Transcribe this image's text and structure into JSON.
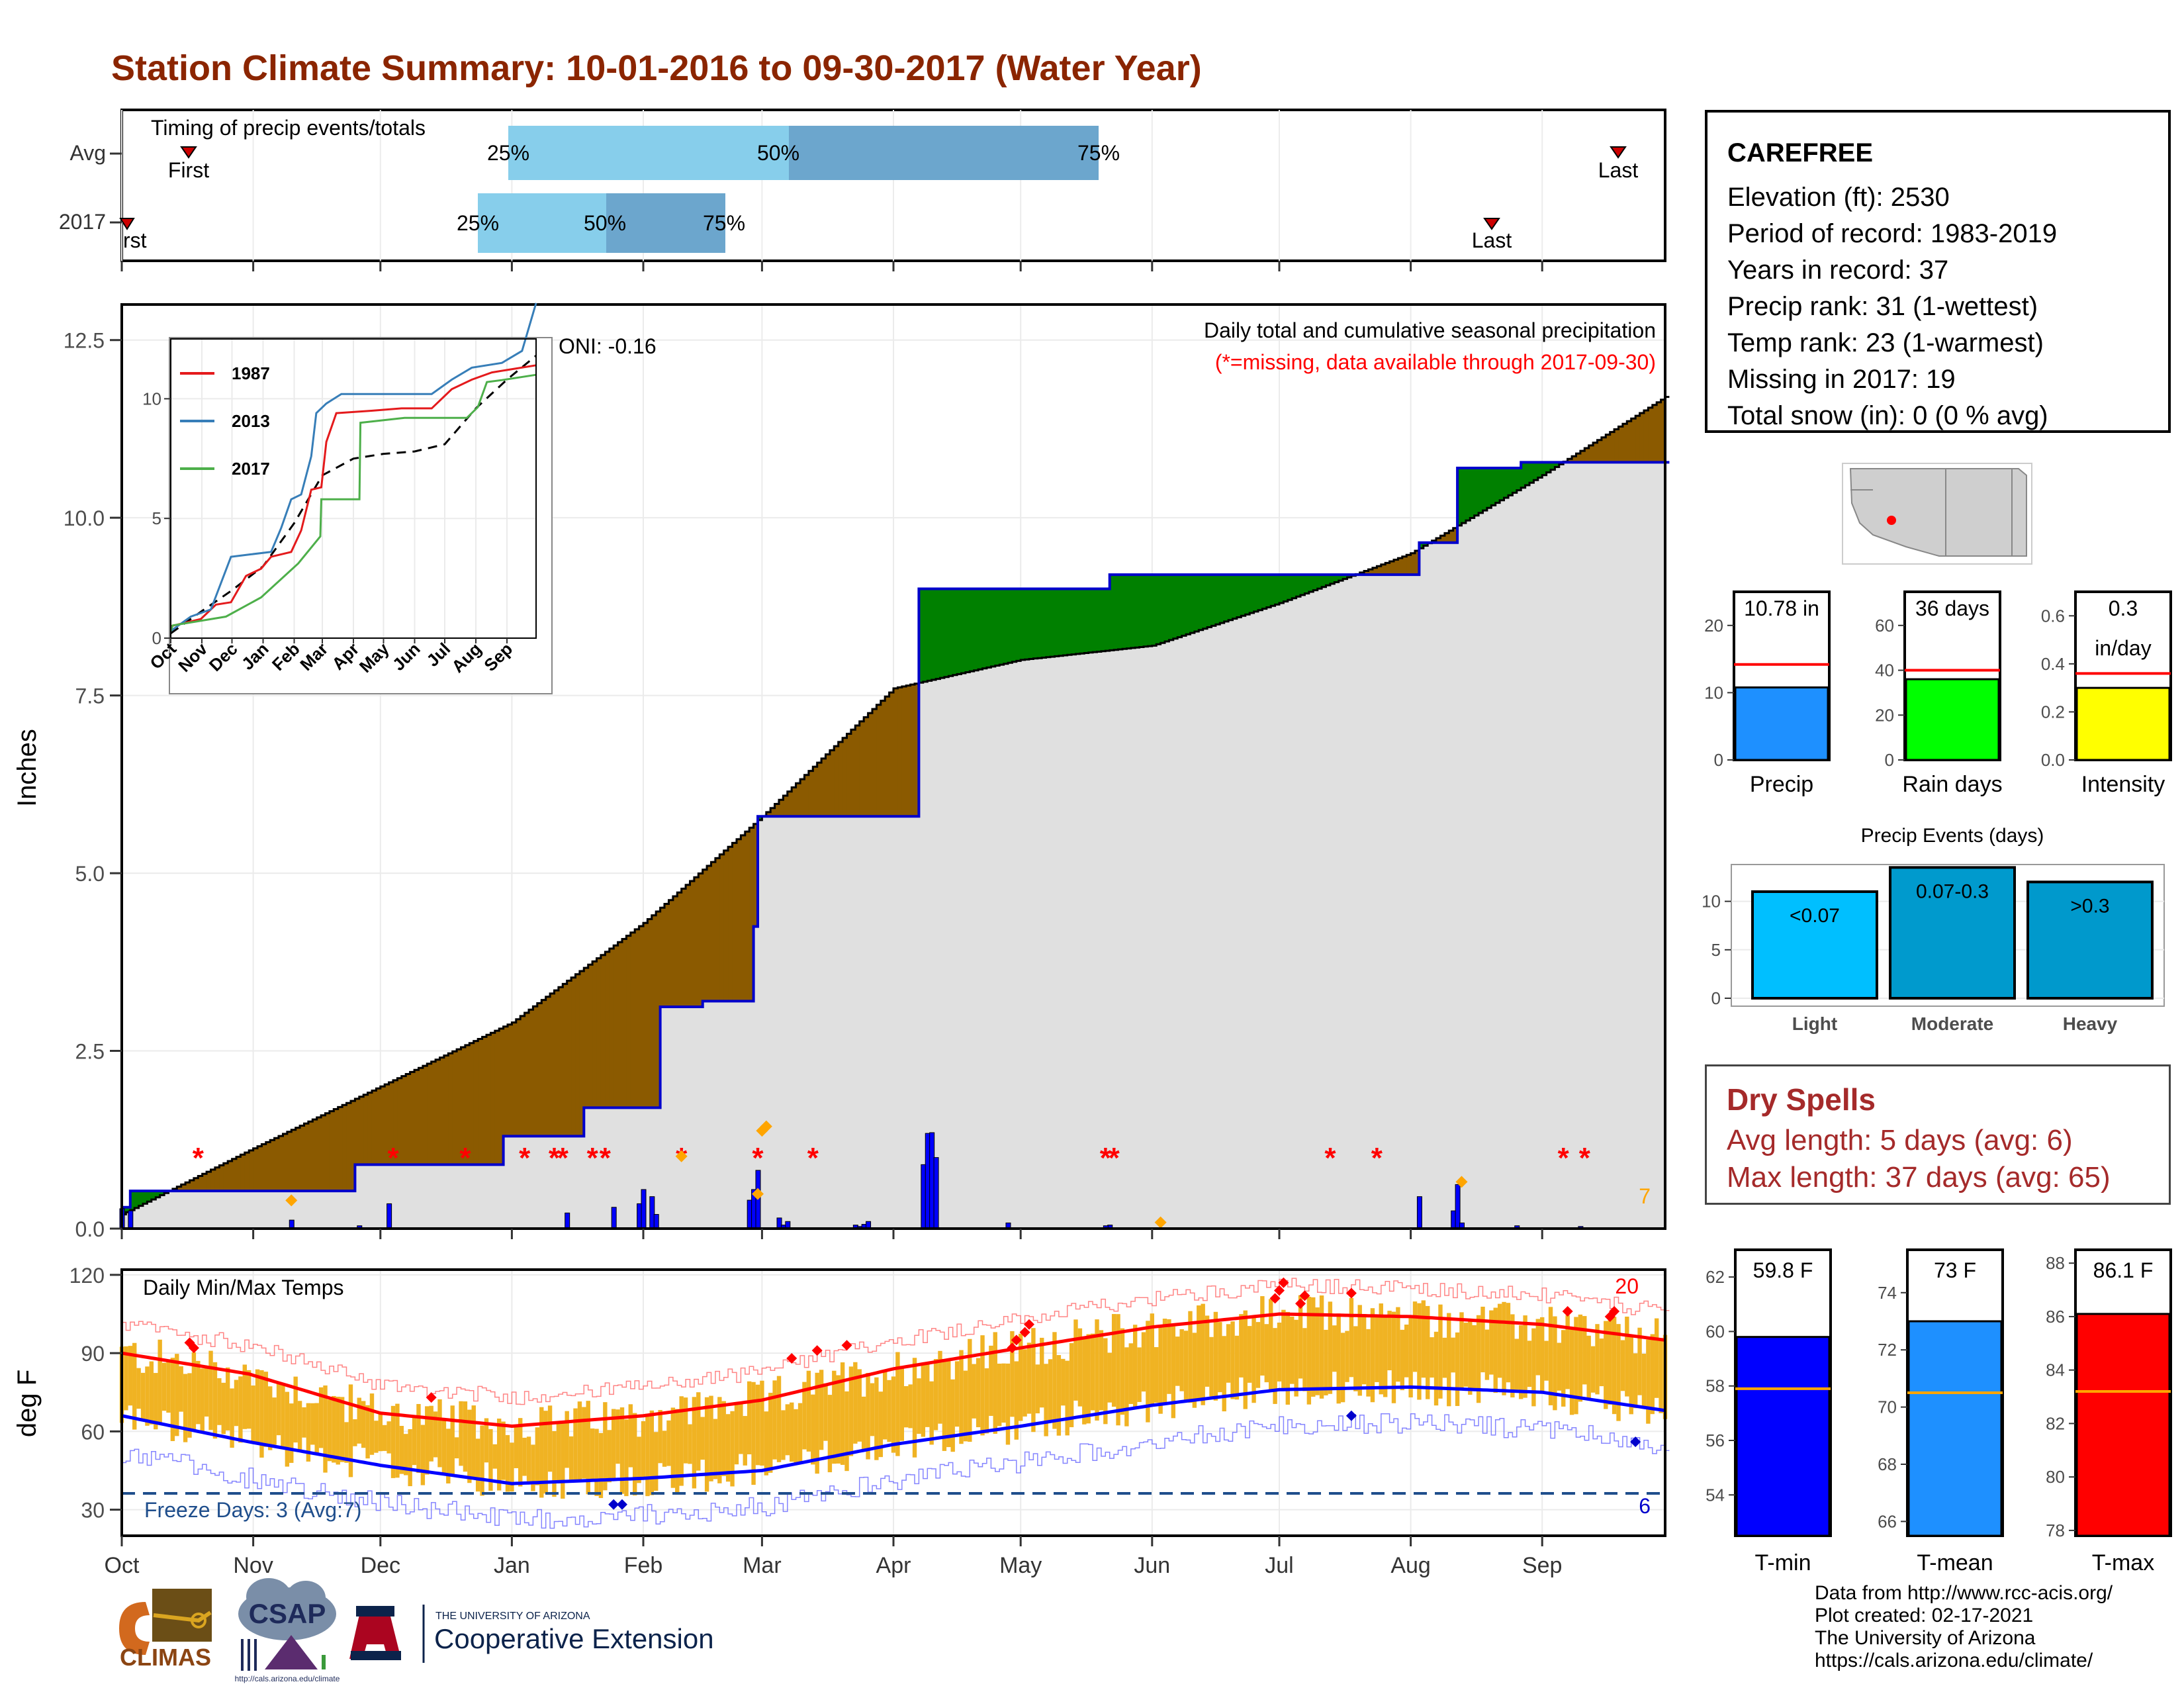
{
  "title": "Station Climate Summary: 10-01-2016 to 09-30-2017 (Water Year)",
  "timing": {
    "label": "Timing of precip events/totals",
    "rows": [
      "Avg",
      "2017"
    ],
    "avg": {
      "first": "First",
      "last": "Last",
      "p25": "25%",
      "p50": "50%",
      "p75": "75%"
    },
    "y2017": {
      "first": "rst",
      "last": "Last",
      "p25": "25%",
      "p50": "50%",
      "p75": "75%"
    }
  },
  "station": {
    "name": "CAREFREE",
    "lines": [
      "Elevation (ft): 2530",
      "Period of record: 1983-2019",
      "Years in record: 37",
      "Precip rank: 31 (1-wettest)",
      "Temp rank: 23 (1-warmest)",
      "Missing in 2017: 19",
      "Total snow (in): 0 (0 % avg)"
    ]
  },
  "precip_panel": {
    "ylabel": "Inches",
    "note1": "Daily total and cumulative seasonal precipitation",
    "note2": "(*=missing, data available through 2017-09-30)",
    "oni": "ONI: -0.16",
    "corner_count": "7",
    "colors": {
      "above": "#008000",
      "below": "#8B5A00",
      "normal_fill": "#e0e0e0",
      "daily": "#0000FF",
      "missing": "#FF0000",
      "extreme": "#FFA500"
    }
  },
  "inset": {
    "legend": [
      "1987",
      "2013",
      "2017"
    ],
    "colors": [
      "#e41a1c",
      "#377eb8",
      "#4daf4a"
    ],
    "months": [
      "Oct",
      "Nov",
      "Dec",
      "Jan",
      "Feb",
      "Mar",
      "Apr",
      "May",
      "Jun",
      "Jul",
      "Aug",
      "Sep"
    ],
    "yticks": [
      "0",
      "5",
      "10"
    ]
  },
  "temp_panel": {
    "ylabel": "deg F",
    "label": "Daily Min/Max Temps",
    "freeze": "Freeze Days: 3 (Avg:7)",
    "count_hot": "20",
    "count_cold": "6",
    "yticks": [
      "30",
      "60",
      "90",
      "120"
    ],
    "months": [
      "Oct",
      "Nov",
      "Dec",
      "Jan",
      "Feb",
      "Mar",
      "Apr",
      "May",
      "Jun",
      "Jul",
      "Aug",
      "Sep"
    ]
  },
  "summary_bars": [
    {
      "label": "Precip",
      "value_text": "10.78 in",
      "value": 10.78,
      "avg": 14.2,
      "ymax": 25,
      "ticks": [
        "0",
        "10",
        "20"
      ],
      "color": "#1E90FF"
    },
    {
      "label": "Rain days",
      "value_text": "36 days",
      "value": 36,
      "avg": 40,
      "ymax": 75,
      "ticks": [
        "0",
        "20",
        "40",
        "60"
      ],
      "color": "#00FF00"
    },
    {
      "label": "Intensity",
      "value_text": "0.3",
      "value_text2": "in/day",
      "value": 0.3,
      "avg": 0.36,
      "ymax": 0.7,
      "ticks": [
        "0.0",
        "0.2",
        "0.4",
        "0.6"
      ],
      "color": "#FFFF00"
    }
  ],
  "events": {
    "title": "Precip Events (days)",
    "bars": [
      {
        "label": "Light",
        "text": "<0.07",
        "value": 11,
        "color": "#00BFFF"
      },
      {
        "label": "Moderate",
        "text": "0.07-0.3",
        "value": 13.5,
        "color": "#009ACD"
      },
      {
        "label": "Heavy",
        "text": ">0.3",
        "value": 12,
        "color": "#0099CC"
      }
    ],
    "yticks": [
      "0",
      "5",
      "10"
    ]
  },
  "dry_spells": {
    "title": "Dry Spells",
    "avg_length": "Avg length: 5 days (avg: 6)",
    "max_length": "Max length: 37 days (avg: 65)"
  },
  "temp_bars": [
    {
      "label": "T-min",
      "value_text": "59.8 F",
      "value": 59.8,
      "avg": 57.9,
      "ymin": 52.5,
      "ymax": 63,
      "ticks": [
        "54",
        "56",
        "58",
        "60",
        "62"
      ],
      "color": "#0000FF"
    },
    {
      "label": "T-mean",
      "value_text": "73 F",
      "value": 73,
      "avg": 70.5,
      "ymin": 65.5,
      "ymax": 75.5,
      "ticks": [
        "66",
        "68",
        "70",
        "72",
        "74"
      ],
      "color": "#1E90FF"
    },
    {
      "label": "T-max",
      "value_text": "86.1 F",
      "value": 86.1,
      "avg": 83.2,
      "ymin": 77.8,
      "ymax": 88.5,
      "ticks": [
        "78",
        "80",
        "82",
        "84",
        "86",
        "88"
      ],
      "color": "#FF0000"
    }
  ],
  "credits": [
    "Data from http://www.rcc-acis.org/",
    "Plot created: 02-17-2021",
    "The University of Arizona",
    "https://cals.arizona.edu/climate/"
  ],
  "logos": {
    "climas": "CLIMAS",
    "csap": "CSAP",
    "ua_small": "THE UNIVERSITY OF ARIZONA",
    "ua_ext": "Cooperative Extension",
    "csap_url": "http://cals.arizona.edu/climate"
  },
  "chart_data": [
    {
      "type": "area",
      "title": "Daily total and cumulative seasonal precipitation",
      "ylabel": "Inches",
      "ylim": [
        0,
        13
      ],
      "yticks": [
        0.0,
        2.5,
        5.0,
        7.5,
        10.0,
        12.5
      ],
      "months": [
        "Oct",
        "Nov",
        "Dec",
        "Jan",
        "Feb",
        "Mar",
        "Apr",
        "May",
        "Jun",
        "Jul",
        "Aug",
        "Sep"
      ],
      "series": [
        {
          "name": "Normal cumulative",
          "x": [
            0,
            30,
            61,
            92,
            123,
            151,
            182,
            212,
            243,
            273,
            304,
            335,
            364
          ],
          "values": [
            0.2,
            1.1,
            2.0,
            2.9,
            4.3,
            5.8,
            7.6,
            8.0,
            8.2,
            8.8,
            9.5,
            10.6,
            11.7
          ]
        },
        {
          "name": "2017 cumulative",
          "x": [
            0,
            2,
            10,
            22,
            55,
            90,
            109,
            127,
            137,
            149,
            150,
            160,
            175,
            188,
            233,
            259,
            295,
            306,
            315,
            330,
            364
          ],
          "values": [
            0.3,
            0.53,
            0.53,
            0.53,
            0.9,
            1.3,
            1.7,
            3.12,
            3.2,
            4.25,
            5.8,
            5.8,
            5.8,
            9.0,
            9.2,
            9.2,
            9.2,
            9.65,
            10.7,
            10.78,
            10.78
          ]
        }
      ]
    },
    {
      "type": "line",
      "title": "Daily Min/Max Temps",
      "ylabel": "deg F",
      "ylim": [
        20,
        122
      ],
      "yticks": [
        30,
        60,
        90,
        120
      ],
      "series": [
        {
          "name": "Avg max",
          "x": [
            0,
            30,
            61,
            92,
            123,
            151,
            182,
            212,
            243,
            273,
            304,
            335,
            364
          ],
          "values": [
            90,
            82,
            67,
            62,
            66,
            72,
            84,
            92,
            100,
            105,
            104,
            101,
            95
          ]
        },
        {
          "name": "Avg min",
          "x": [
            0,
            30,
            61,
            92,
            123,
            151,
            182,
            212,
            243,
            273,
            304,
            335,
            364
          ],
          "values": [
            66,
            56,
            47,
            40,
            42,
            45,
            55,
            62,
            70,
            76,
            77,
            75,
            68
          ]
        }
      ]
    }
  ]
}
